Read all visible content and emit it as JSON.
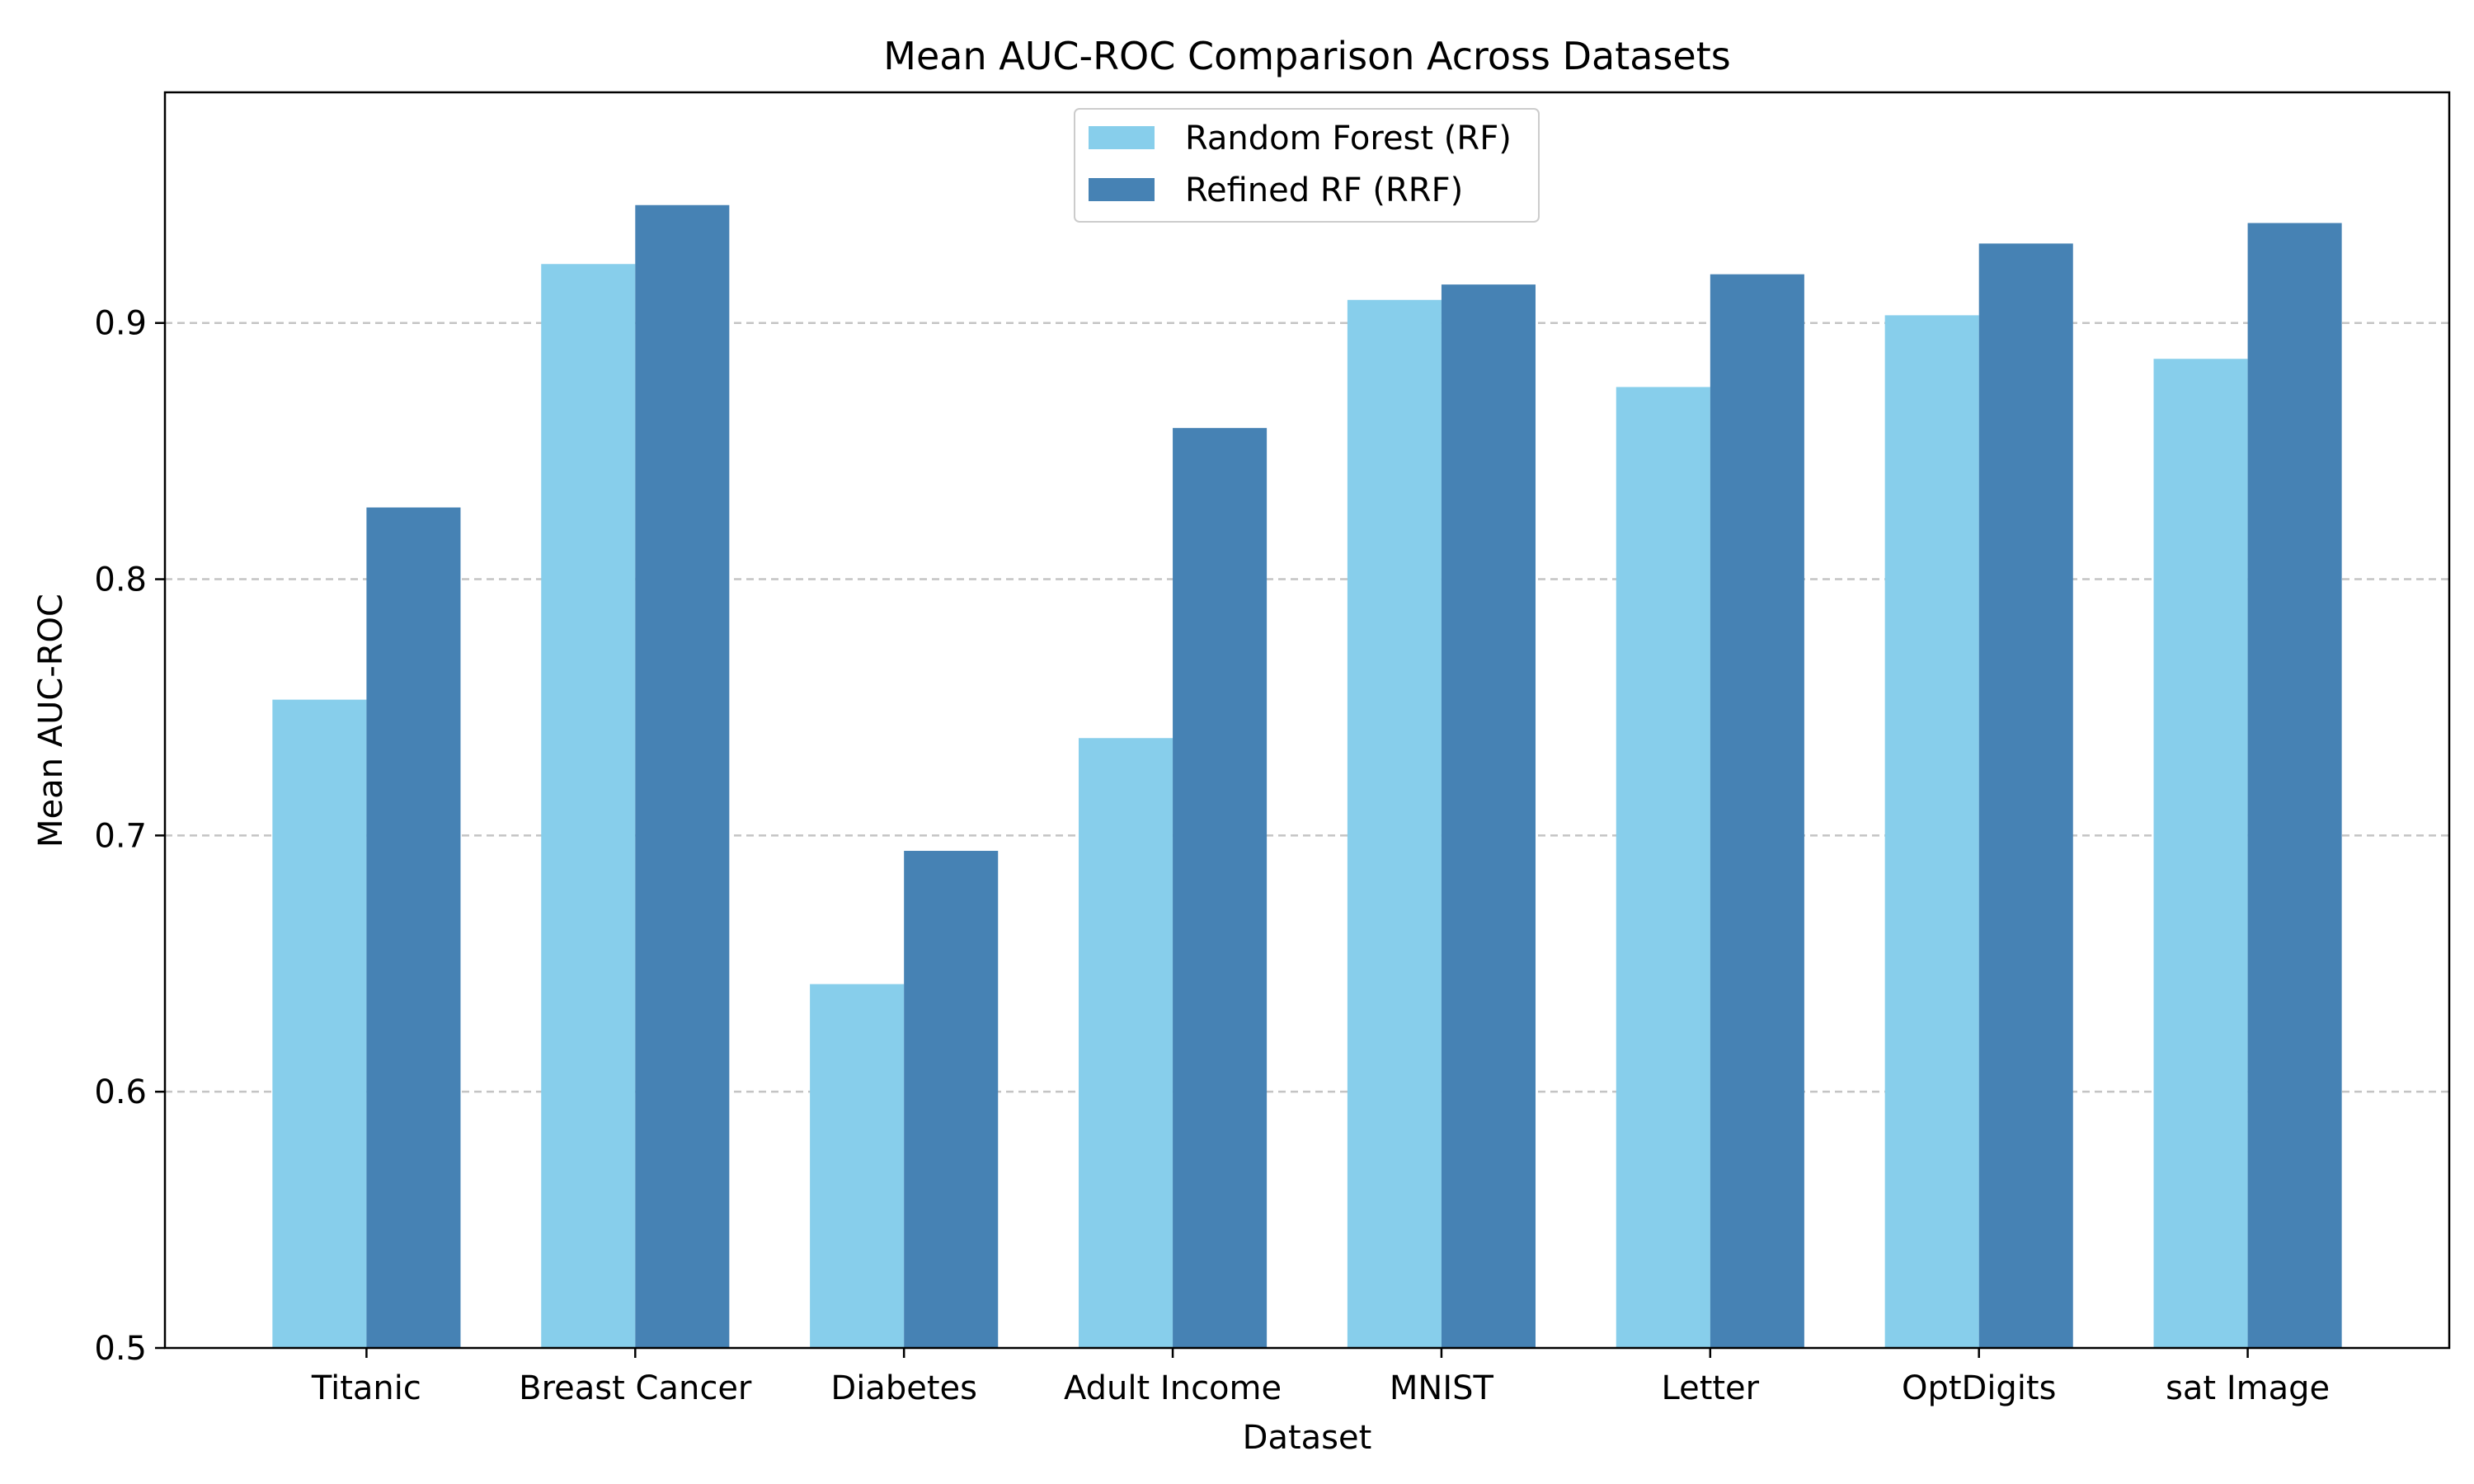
{
  "chart_data": {
    "type": "bar",
    "title": "Mean AUC-ROC Comparison Across Datasets",
    "xlabel": "Dataset",
    "ylabel": "Mean AUC-ROC",
    "categories": [
      "Titanic",
      "Breast Cancer",
      "Diabetes",
      "Adult Income",
      "MNIST",
      "Letter",
      "OptDigits",
      "sat Image"
    ],
    "series": [
      {
        "name": "Random Forest (RF)",
        "color": "#87CEEB",
        "values": [
          0.753,
          0.923,
          0.642,
          0.738,
          0.909,
          0.875,
          0.903,
          0.886
        ]
      },
      {
        "name": "Refined RF (RRF)",
        "color": "#4682B4",
        "values": [
          0.828,
          0.946,
          0.694,
          0.859,
          0.915,
          0.919,
          0.931,
          0.939
        ]
      }
    ],
    "ylim": [
      0.5,
      0.99
    ],
    "yticks": [
      "0.5",
      "0.6",
      "0.7",
      "0.8",
      "0.9"
    ],
    "ytick_values": [
      0.5,
      0.6,
      0.7,
      0.8,
      0.9
    ],
    "grid": "horizontal dashed",
    "legend_position": "top-center"
  }
}
